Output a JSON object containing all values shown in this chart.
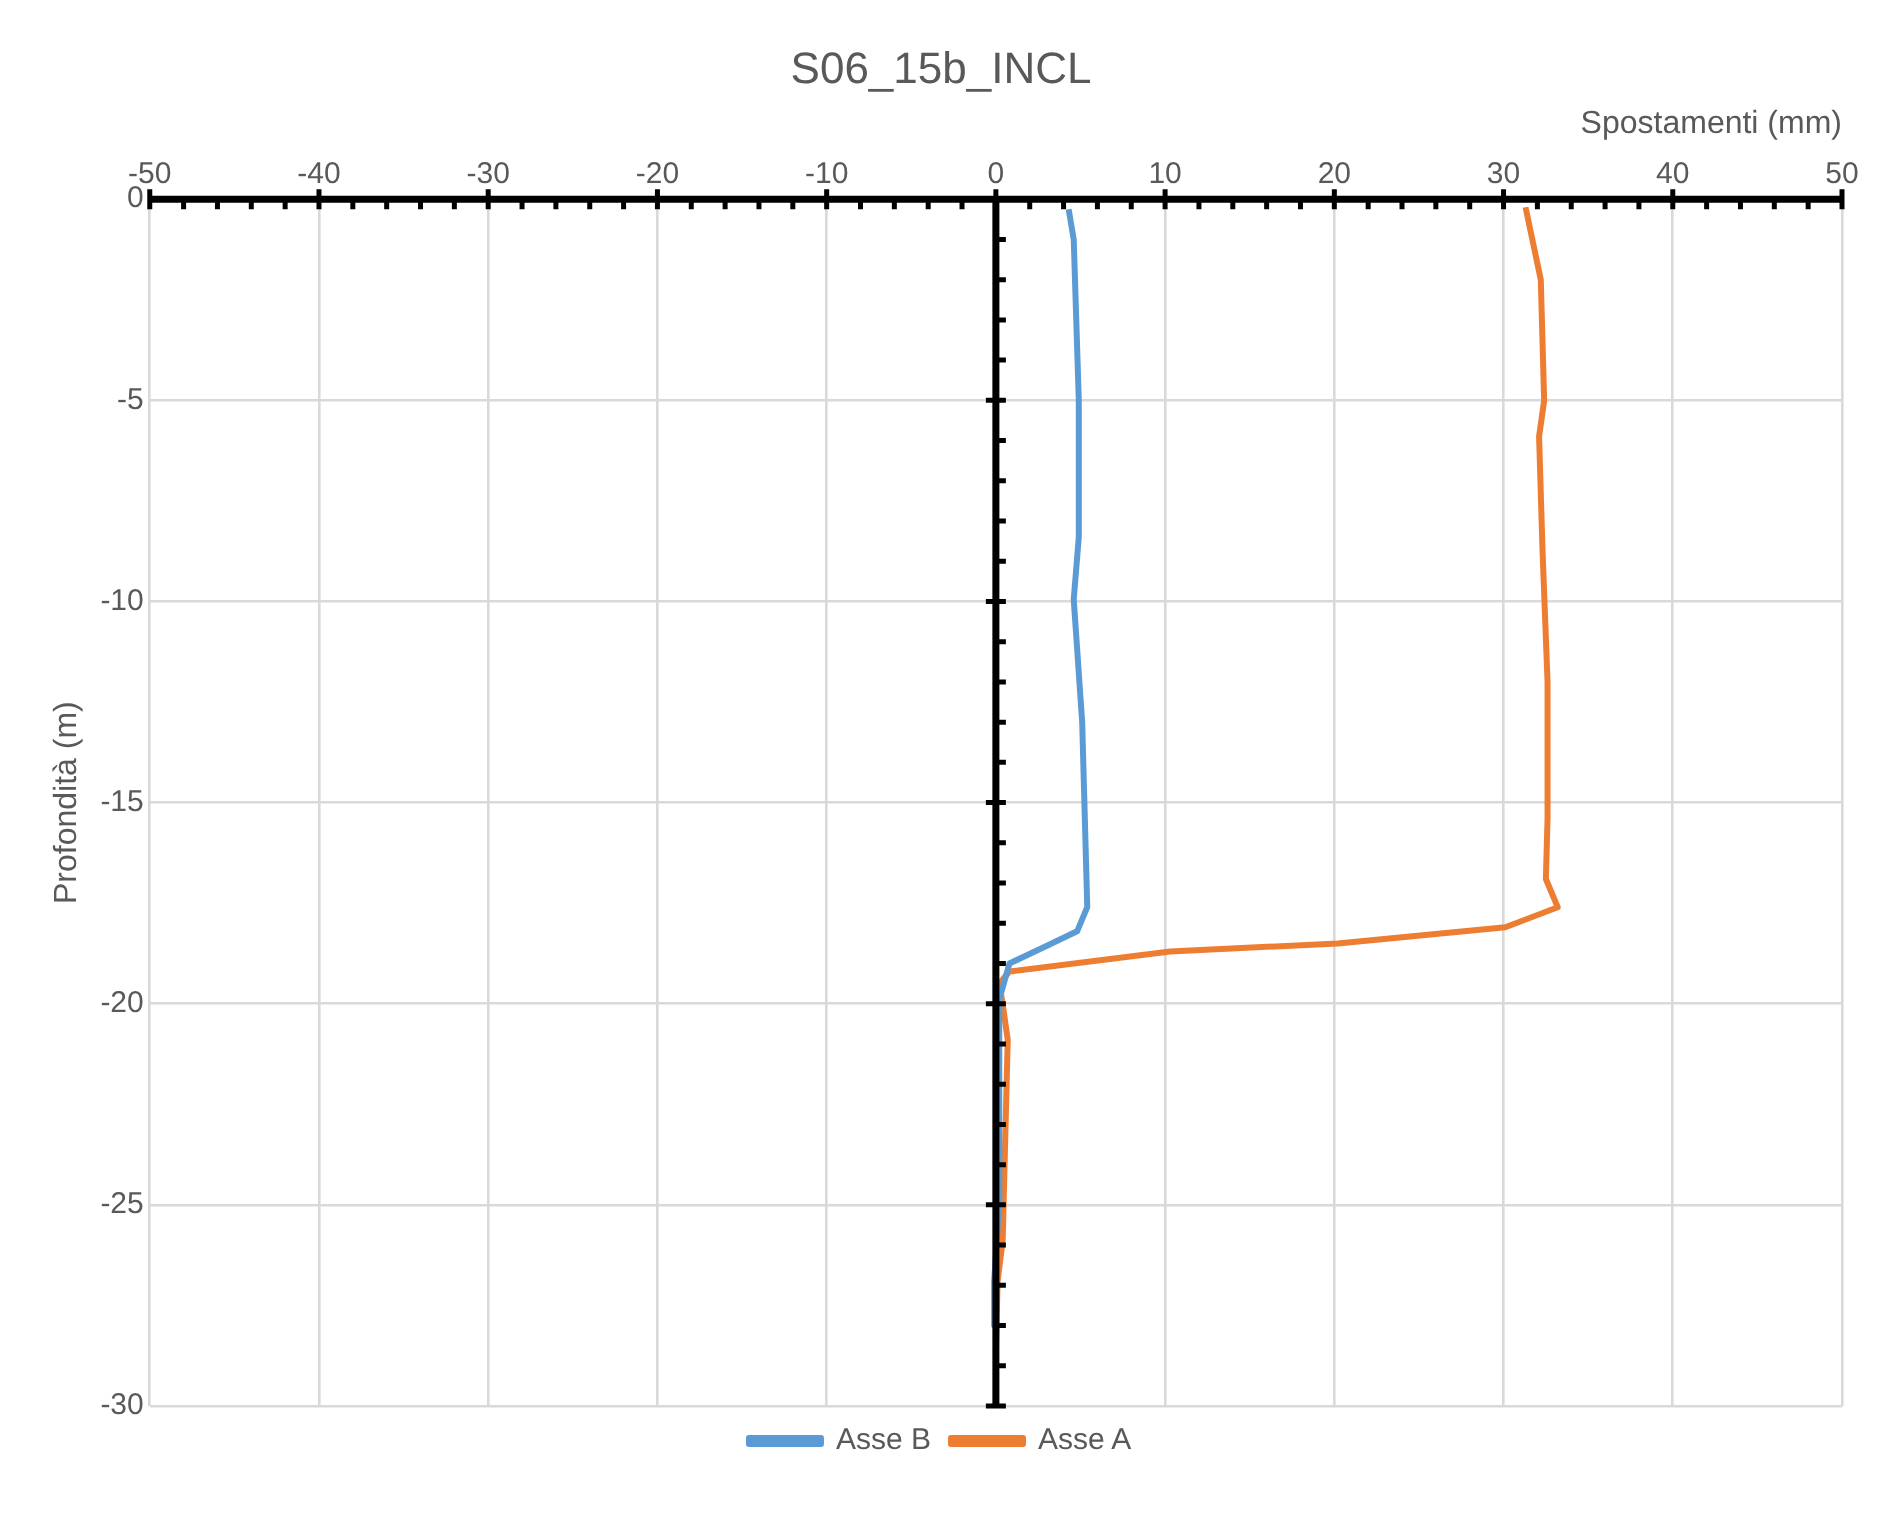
{
  "chart_data": {
    "type": "line",
    "title": "S06_15b_INCL",
    "xlabel": "Spostamenti (mm)",
    "ylabel": "Profondità (m)",
    "xlim": [
      -50,
      50
    ],
    "ylim": [
      -30,
      0
    ],
    "xticks": [
      -50,
      {
        "value": -48,
        "label": null
      },
      {
        "value": -46,
        "label": null
      },
      {
        "value": -44,
        "label": null
      },
      {
        "value": -42,
        "label": null
      },
      -40,
      {
        "value": -38,
        "label": null
      },
      {
        "value": -36,
        "label": null
      },
      {
        "value": -34,
        "label": null
      },
      {
        "value": -32,
        "label": null
      },
      -30,
      {
        "value": -28,
        "label": null
      },
      {
        "value": -26,
        "label": null
      },
      {
        "value": -24,
        "label": null
      },
      {
        "value": -22,
        "label": null
      },
      -20,
      {
        "value": -18,
        "label": null
      },
      {
        "value": -16,
        "label": null
      },
      {
        "value": -14,
        "label": null
      },
      {
        "value": -12,
        "label": null
      },
      -10,
      {
        "value": -8,
        "label": null
      },
      {
        "value": -6,
        "label": null
      },
      {
        "value": -4,
        "label": null
      },
      {
        "value": -2,
        "label": null
      },
      0,
      {
        "value": 2,
        "label": null
      },
      {
        "value": 4,
        "label": null
      },
      {
        "value": 6,
        "label": null
      },
      {
        "value": 8,
        "label": null
      },
      10,
      {
        "value": 12,
        "label": null
      },
      {
        "value": 14,
        "label": null
      },
      {
        "value": 16,
        "label": null
      },
      {
        "value": 18,
        "label": null
      },
      20,
      {
        "value": 22,
        "label": null
      },
      {
        "value": 24,
        "label": null
      },
      {
        "value": 26,
        "label": null
      },
      {
        "value": 28,
        "label": null
      },
      30,
      {
        "value": 32,
        "label": null
      },
      {
        "value": 34,
        "label": null
      },
      {
        "value": 36,
        "label": null
      },
      {
        "value": 38,
        "label": null
      },
      40,
      {
        "value": 42,
        "label": null
      },
      {
        "value": 44,
        "label": null
      },
      {
        "value": 46,
        "label": null
      },
      {
        "value": 48,
        "label": null
      },
      50
    ],
    "yticks": [
      -30,
      {
        "value": -29,
        "label": null
      },
      {
        "value": -28,
        "label": null
      },
      {
        "value": -27,
        "label": null
      },
      {
        "value": -26,
        "label": null
      },
      -25,
      {
        "value": -24,
        "label": null
      },
      {
        "value": -23,
        "label": null
      },
      {
        "value": -22,
        "label": null
      },
      {
        "value": -21,
        "label": null
      },
      -20,
      {
        "value": -19,
        "label": null
      },
      {
        "value": -18,
        "label": null
      },
      {
        "value": -17,
        "label": null
      },
      {
        "value": -16,
        "label": null
      },
      -15,
      {
        "value": -14,
        "label": null
      },
      {
        "value": -13,
        "label": null
      },
      {
        "value": -12,
        "label": null
      },
      {
        "value": -11,
        "label": null
      },
      -10,
      {
        "value": -9,
        "label": null
      },
      {
        "value": -8,
        "label": null
      },
      {
        "value": -7,
        "label": null
      },
      {
        "value": -6,
        "label": null
      },
      -5,
      {
        "value": -4,
        "label": null
      },
      {
        "value": -3,
        "label": null
      },
      {
        "value": -2,
        "label": null
      },
      {
        "value": -1,
        "label": null
      },
      0
    ],
    "grid": true,
    "legend": "bottom",
    "marker": "none",
    "line_style": "solid",
    "series": [
      {
        "name": "Asse B",
        "color": "#5b9bd5",
        "x": [
          4.3,
          4.6,
          4.9,
          4.9,
          4.6,
          5.1,
          5.4,
          4.8,
          2.8,
          0.8,
          0.2,
          0.2,
          -0.1,
          -0.1
        ],
        "values": [
          -0.25,
          -1.0,
          -5,
          -8.4,
          -9.95,
          -13,
          -17.6,
          -18.2,
          -18.6,
          -19.0,
          -19.9,
          -24.9,
          -26.9,
          -28
        ]
      },
      {
        "name": "Asse A",
        "color": "#ed7d31",
        "x": [
          31.3,
          32.2,
          32.4,
          32.1,
          32.3,
          32.6,
          32.6,
          32.5,
          33.2,
          30.1,
          20.2,
          10.3,
          0.8,
          0.2,
          0.4,
          0.7,
          0.4,
          0.1,
          0
        ],
        "values": [
          -0.2,
          -2.0,
          -5.0,
          -5.9,
          -8.7,
          -12,
          -15.4,
          -16.9,
          -17.6,
          -18.1,
          -18.5,
          -18.7,
          -19.2,
          -19.5,
          -20.0,
          -20.9,
          -25.9,
          -26.9,
          -28.7
        ]
      }
    ]
  }
}
